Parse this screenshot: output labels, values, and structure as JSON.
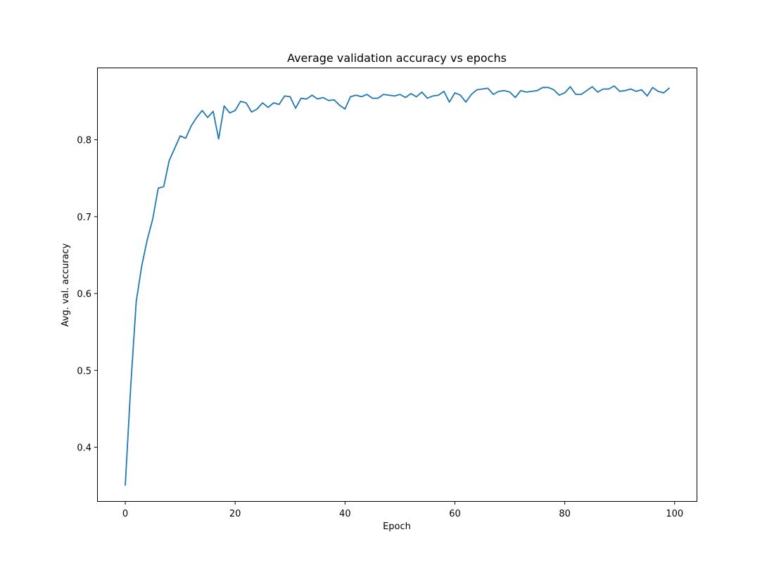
{
  "chart_data": {
    "type": "line",
    "title": "Average validation accuracy vs epochs",
    "xlabel": "Epoch",
    "ylabel": "Avg. val. accuracy",
    "xlim": [
      -5,
      104
    ],
    "ylim": [
      0.33,
      0.893
    ],
    "xticks": [
      0,
      20,
      40,
      60,
      80,
      100
    ],
    "xtick_labels": [
      "0",
      "20",
      "40",
      "60",
      "80",
      "100"
    ],
    "yticks": [
      0.4,
      0.5,
      0.6,
      0.7,
      0.8
    ],
    "ytick_labels": [
      "0.4",
      "0.5",
      "0.6",
      "0.7",
      "0.8"
    ],
    "grid": false,
    "line_color": "#1f77b4",
    "series": [
      {
        "x": [
          0,
          1,
          2,
          3,
          4,
          5,
          6,
          7,
          8,
          9,
          10,
          11,
          12,
          13,
          14,
          15,
          16,
          17,
          18,
          19,
          20,
          21,
          22,
          23,
          24,
          25,
          26,
          27,
          28,
          29,
          30,
          31,
          32,
          33,
          34,
          35,
          36,
          37,
          38,
          39,
          40,
          41,
          42,
          43,
          44,
          45,
          46,
          47,
          48,
          49,
          50,
          51,
          52,
          53,
          54,
          55,
          56,
          57,
          58,
          59,
          60,
          61,
          62,
          63,
          64,
          65,
          66,
          67,
          68,
          69,
          70,
          71,
          72,
          73,
          74,
          75,
          76,
          77,
          78,
          79,
          80,
          81,
          82,
          83,
          84,
          85,
          86,
          87,
          88,
          89,
          90,
          91,
          92,
          93,
          94,
          95,
          96,
          97,
          98,
          99
        ],
        "values": [
          0.351,
          0.48,
          0.59,
          0.636,
          0.67,
          0.697,
          0.737,
          0.739,
          0.773,
          0.789,
          0.805,
          0.802,
          0.818,
          0.829,
          0.838,
          0.829,
          0.837,
          0.801,
          0.844,
          0.835,
          0.838,
          0.85,
          0.848,
          0.836,
          0.84,
          0.848,
          0.842,
          0.848,
          0.846,
          0.857,
          0.856,
          0.841,
          0.854,
          0.853,
          0.858,
          0.853,
          0.855,
          0.851,
          0.852,
          0.845,
          0.84,
          0.856,
          0.858,
          0.856,
          0.859,
          0.854,
          0.854,
          0.859,
          0.858,
          0.857,
          0.859,
          0.855,
          0.86,
          0.856,
          0.862,
          0.854,
          0.857,
          0.858,
          0.863,
          0.849,
          0.861,
          0.858,
          0.849,
          0.859,
          0.865,
          0.866,
          0.867,
          0.859,
          0.863,
          0.864,
          0.862,
          0.855,
          0.864,
          0.862,
          0.863,
          0.864,
          0.868,
          0.868,
          0.865,
          0.858,
          0.861,
          0.869,
          0.859,
          0.859,
          0.864,
          0.869,
          0.862,
          0.866,
          0.866,
          0.87,
          0.863,
          0.864,
          0.866,
          0.863,
          0.865,
          0.857,
          0.868,
          0.863,
          0.861,
          0.867
        ]
      }
    ]
  }
}
